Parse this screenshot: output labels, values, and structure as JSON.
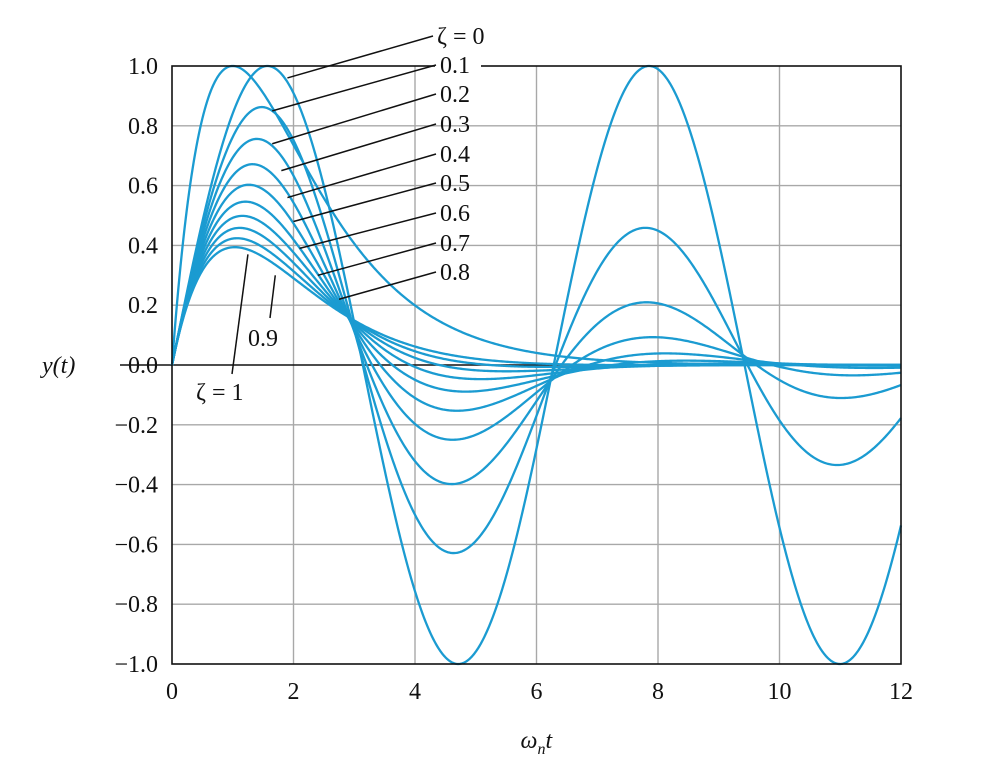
{
  "chart_data": {
    "type": "line",
    "title": "",
    "xlabel": "ω_n t",
    "ylabel": "y(t)",
    "xlim": [
      0,
      12
    ],
    "ylim": [
      -1.0,
      1.0
    ],
    "x_ticks": [
      0,
      2,
      4,
      6,
      8,
      10,
      12
    ],
    "y_ticks": [
      1.0,
      0.8,
      0.6,
      0.4,
      0.2,
      0.0,
      -0.2,
      -0.4,
      -0.6,
      -0.8,
      -1.0
    ],
    "x_tick_labels": [
      "0",
      "2",
      "4",
      "6",
      "8",
      "10",
      "12"
    ],
    "y_tick_labels": [
      "1.0",
      "0.8",
      "0.6",
      "0.4",
      "0.2",
      "0.0",
      "−0.2",
      "−0.4",
      "−0.6",
      "−0.8",
      "−1.0"
    ],
    "grid": true,
    "line_color": "#1b9bd1",
    "function": "y(t) = e^(−ζ·ω_n·t)·sin(√(1−ζ²)·ω_n·t)/√(1−ζ²); ζ=1: t·e^(−t)·e",
    "series": [
      {
        "name": "ζ = 0",
        "zeta": 0.0,
        "peak": [
          1.57,
          1.0
        ]
      },
      {
        "name": "0.1",
        "zeta": 0.1,
        "peak": [
          1.48,
          0.86
        ]
      },
      {
        "name": "0.2",
        "zeta": 0.2,
        "peak": [
          1.4,
          0.75
        ]
      },
      {
        "name": "0.3",
        "zeta": 0.3,
        "peak": [
          1.33,
          0.66
        ]
      },
      {
        "name": "0.4",
        "zeta": 0.4,
        "peak": [
          1.26,
          0.59
        ]
      },
      {
        "name": "0.5",
        "zeta": 0.5,
        "peak": [
          1.21,
          0.54
        ]
      },
      {
        "name": "0.6",
        "zeta": 0.6,
        "peak": [
          1.16,
          0.5
        ]
      },
      {
        "name": "0.7",
        "zeta": 0.7,
        "peak": [
          1.11,
          0.46
        ]
      },
      {
        "name": "0.8",
        "zeta": 0.8,
        "peak": [
          1.07,
          0.43
        ]
      },
      {
        "name": "0.9",
        "zeta": 0.9,
        "peak": [
          1.03,
          0.4
        ]
      },
      {
        "name": "ζ = 1",
        "zeta": 1.0,
        "peak": [
          1.0,
          0.37
        ]
      }
    ],
    "annotations": [
      {
        "text": "ζ = 0",
        "points_to": [
          1.9,
          0.96
        ]
      },
      {
        "text": "0.1",
        "points_to": [
          1.65,
          0.85
        ]
      },
      {
        "text": "0.2",
        "points_to": [
          1.65,
          0.74
        ]
      },
      {
        "text": "0.3",
        "points_to": [
          1.8,
          0.65
        ]
      },
      {
        "text": "0.4",
        "points_to": [
          1.9,
          0.56
        ]
      },
      {
        "text": "0.5",
        "points_to": [
          2.0,
          0.48
        ]
      },
      {
        "text": "0.6",
        "points_to": [
          2.1,
          0.39
        ]
      },
      {
        "text": "0.7",
        "points_to": [
          2.4,
          0.3
        ]
      },
      {
        "text": "0.8",
        "points_to": [
          2.75,
          0.22
        ]
      },
      {
        "text": "0.9",
        "points_to": [
          1.7,
          0.3
        ]
      },
      {
        "text": "ζ = 1",
        "points_to": [
          1.25,
          0.37
        ]
      }
    ]
  }
}
